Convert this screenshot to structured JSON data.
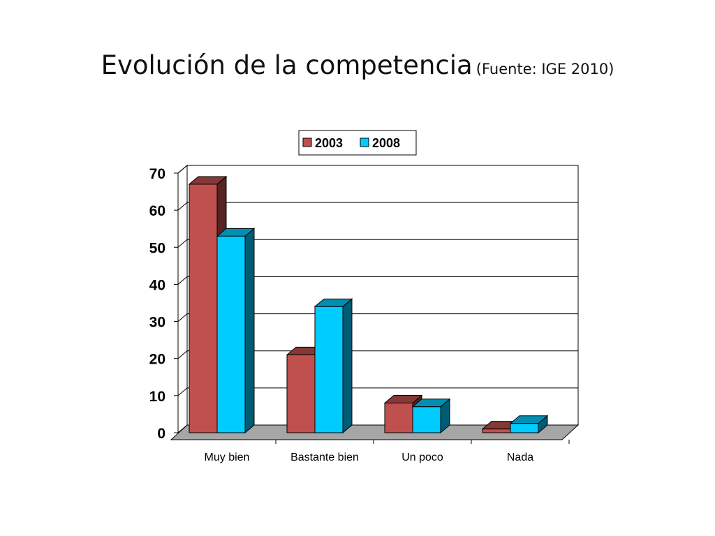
{
  "slide": {
    "title": "Evolución de la competencia",
    "subtitle": "(Fuente: IGE 2010)"
  },
  "chart_data": {
    "type": "bar",
    "categories": [
      "Muy bien",
      "Bastante bien",
      "Un poco",
      "Nada"
    ],
    "series": [
      {
        "name": "2003",
        "values": [
          67,
          21,
          8,
          1
        ],
        "color": "#c0504d"
      },
      {
        "name": "2008",
        "values": [
          53,
          34,
          7,
          2.5
        ],
        "color": "#00ccff"
      }
    ],
    "ylim": [
      0,
      70
    ],
    "yticks": [
      0,
      10,
      20,
      30,
      40,
      50,
      60,
      70
    ],
    "grid": true,
    "legend": "top-center",
    "style": "3d-clustered-column",
    "title": "",
    "xlabel": "",
    "ylabel": ""
  }
}
